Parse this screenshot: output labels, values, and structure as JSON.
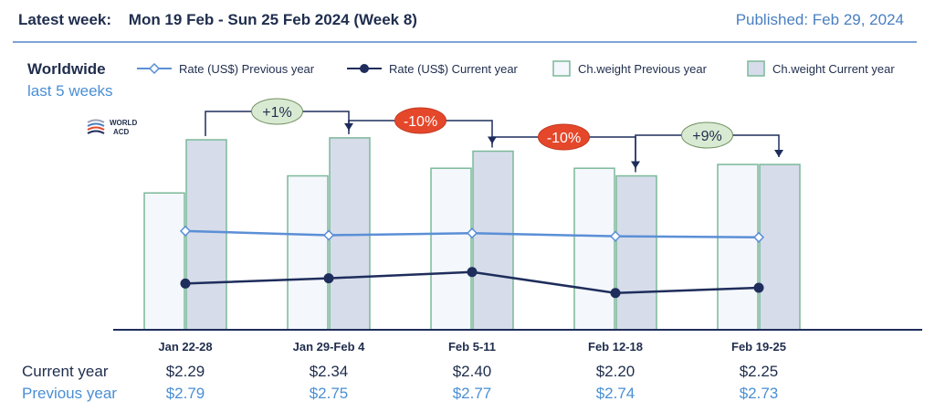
{
  "header": {
    "latest_week_label": "Latest week:",
    "latest_week_value": "Mon 19 Feb - Sun 25 Feb 2024 (Week 8)",
    "published": "Published: Feb 29, 2024"
  },
  "subtitle": {
    "line1": "Worldwide",
    "line2": "last 5 weeks"
  },
  "logo": {
    "line1": "WORLD",
    "line2": "ACD"
  },
  "colors": {
    "prev_rate": "#5b8fd6",
    "cur_rate": "#1f2d5c",
    "bar_prev_fill": "#f4f7fc",
    "bar_cur_fill": "#d6dcea",
    "bar_stroke": "#7cb89a",
    "chg_pos": "#d9ead3",
    "chg_neg": "#e5472b"
  },
  "legend": [
    {
      "label": "Rate (US$) Previous year",
      "symbol": "line-diamond"
    },
    {
      "label": "Rate (US$) Current year",
      "symbol": "line-dot"
    },
    {
      "label": "Ch.weight Previous year",
      "symbol": "box-light"
    },
    {
      "label": "Ch.weight Current year",
      "symbol": "box-dark"
    }
  ],
  "chart_data": {
    "type": "bar",
    "categories": [
      "Jan 22-28",
      "Jan 29-Feb 4",
      "Feb 5-11",
      "Feb 12-18",
      "Feb 19-25"
    ],
    "bar_series": [
      {
        "name": "Ch.weight Previous year",
        "values": [
          0.72,
          0.81,
          0.85,
          0.85,
          0.87
        ]
      },
      {
        "name": "Ch.weight Current year",
        "values": [
          1.0,
          1.01,
          0.94,
          0.81,
          0.87
        ]
      }
    ],
    "line_series": [
      {
        "name": "Rate (US$) Previous year",
        "values": [
          2.79,
          2.75,
          2.77,
          2.74,
          2.73
        ]
      },
      {
        "name": "Rate (US$) Current year",
        "values": [
          2.29,
          2.34,
          2.4,
          2.2,
          2.25
        ]
      }
    ],
    "changes": [
      "+1%",
      "-10%",
      "-10%",
      "+9%"
    ],
    "table": {
      "rows": [
        {
          "label": "Current year",
          "values": [
            "$2.29",
            "$2.34",
            "$2.40",
            "$2.20",
            "$2.25"
          ]
        },
        {
          "label": "Previous year",
          "values": [
            "$2.79",
            "$2.75",
            "$2.77",
            "$2.74",
            "$2.73"
          ]
        }
      ]
    }
  }
}
